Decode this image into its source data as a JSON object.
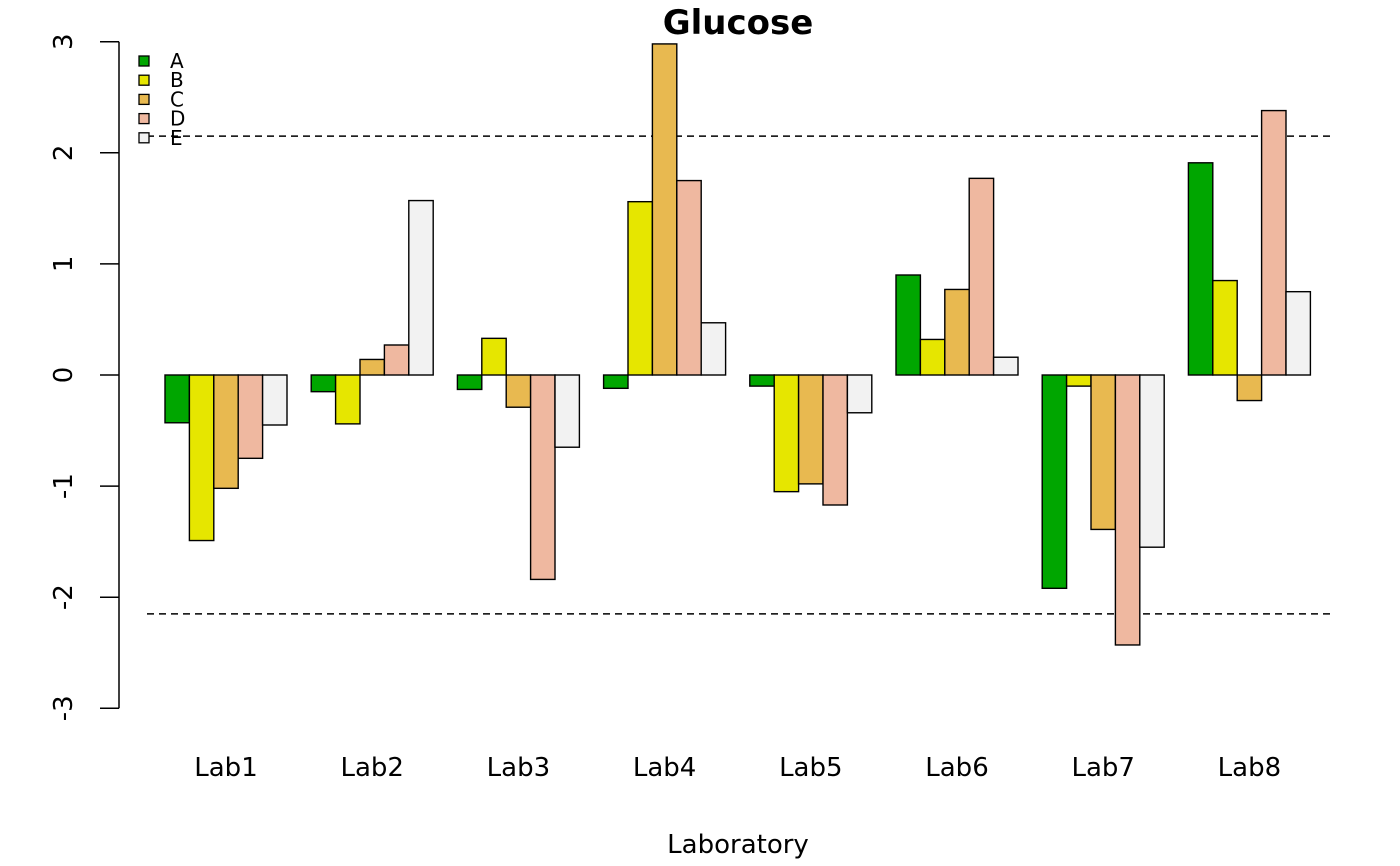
{
  "chart_data": {
    "type": "bar",
    "title": "Glucose",
    "xlabel": "Laboratory",
    "ylabel": "",
    "categories": [
      "Lab1",
      "Lab2",
      "Lab3",
      "Lab4",
      "Lab5",
      "Lab6",
      "Lab7",
      "Lab8"
    ],
    "series": [
      {
        "name": "A",
        "color": "#00a600",
        "values": [
          -0.43,
          -0.15,
          -0.13,
          -0.12,
          -0.1,
          0.9,
          -1.92,
          1.91
        ]
      },
      {
        "name": "B",
        "color": "#e6e600",
        "values": [
          -1.49,
          -0.44,
          0.33,
          1.56,
          -1.05,
          0.32,
          -0.1,
          0.85
        ]
      },
      {
        "name": "C",
        "color": "#e8b950",
        "values": [
          -1.02,
          0.14,
          -0.29,
          2.98,
          -0.98,
          0.77,
          -1.39,
          -0.23
        ]
      },
      {
        "name": "D",
        "color": "#efb8a0",
        "values": [
          -0.75,
          0.27,
          -1.84,
          1.75,
          -1.17,
          1.77,
          -2.43,
          2.38
        ]
      },
      {
        "name": "E",
        "color": "#f2f2f2",
        "values": [
          -0.45,
          1.57,
          -0.65,
          0.47,
          -0.34,
          0.16,
          -1.55,
          0.75
        ]
      }
    ],
    "ylim": [
      -3,
      3
    ],
    "yticks": [
      "-3",
      "-2",
      "-1",
      "0",
      "1",
      "2",
      "3"
    ],
    "reference_lines": [
      2.15,
      -2.15
    ],
    "grid": false,
    "legend_position": "top-left"
  }
}
